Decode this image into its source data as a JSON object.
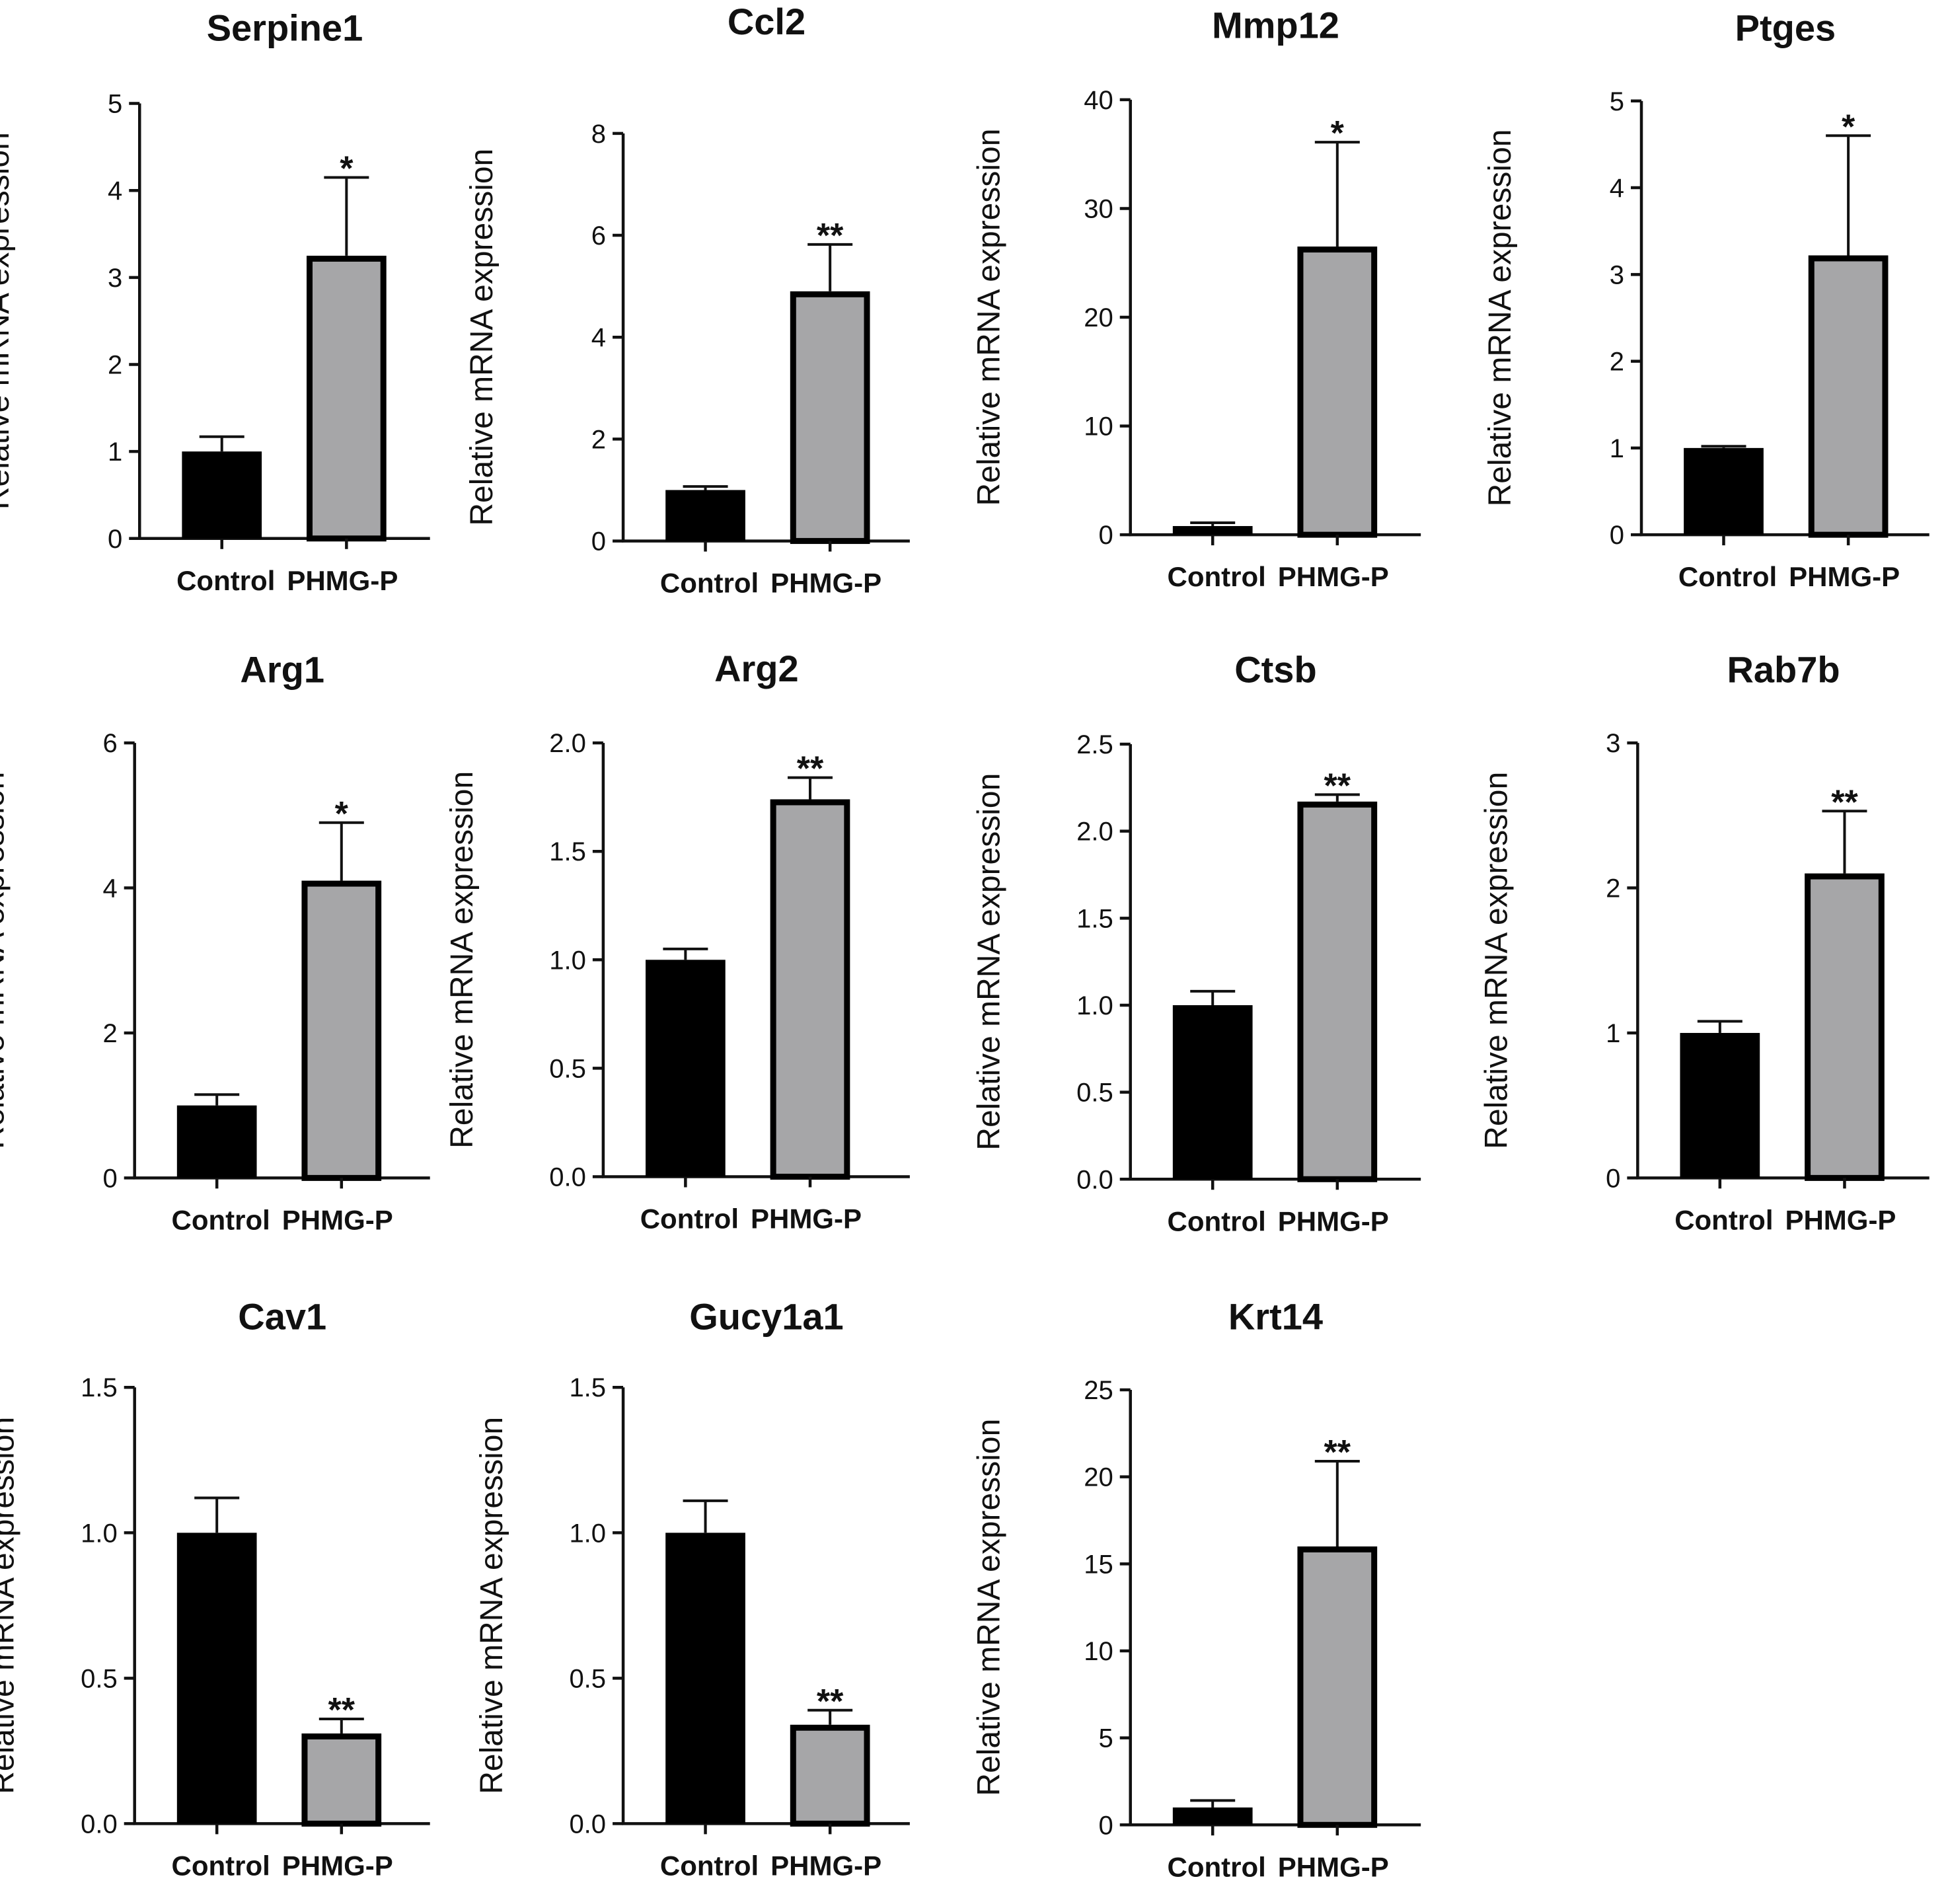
{
  "figure": {
    "y_axis_label": "Relative mRNA expression",
    "categories": [
      "Control",
      "PHMG-P"
    ],
    "colors": {
      "Control": "#000000",
      "PHMG-P": "#a6a6a8"
    }
  },
  "chart_data": [
    {
      "type": "bar",
      "title": "Serpine1",
      "ylabel": "Relative mRNA expression",
      "categories": [
        "Control",
        "PHMG-P"
      ],
      "values": [
        1.0,
        3.25
      ],
      "errors": [
        0.17,
        0.9
      ],
      "ylim": [
        0,
        5
      ],
      "yticks": [
        "0",
        "1",
        "2",
        "3",
        "4",
        "5"
      ],
      "significance": "*"
    },
    {
      "type": "bar",
      "title": "Ccl2",
      "ylabel": "Relative mRNA expression",
      "categories": [
        "Control",
        "PHMG-P"
      ],
      "values": [
        1.0,
        4.9
      ],
      "errors": [
        0.07,
        0.92
      ],
      "ylim": [
        0,
        8
      ],
      "yticks": [
        "0",
        "2",
        "4",
        "6",
        "8"
      ],
      "significance": "**"
    },
    {
      "type": "bar",
      "title": "Mmp12",
      "ylabel": "Relative mRNA expression",
      "categories": [
        "Control",
        "PHMG-P"
      ],
      "values": [
        0.8,
        26.5
      ],
      "errors": [
        0.3,
        9.6
      ],
      "ylim": [
        0,
        40
      ],
      "yticks": [
        "0",
        "10",
        "20",
        "30",
        "40"
      ],
      "significance": "*"
    },
    {
      "type": "bar",
      "title": "Ptges",
      "ylabel": "Relative mRNA expression",
      "categories": [
        "Control",
        "PHMG-P"
      ],
      "values": [
        1.0,
        3.22
      ],
      "errors": [
        0.02,
        1.38
      ],
      "ylim": [
        0,
        5
      ],
      "yticks": [
        "0",
        "1",
        "2",
        "3",
        "4",
        "5"
      ],
      "significance": "*"
    },
    {
      "type": "bar",
      "title": "Arg1",
      "ylabel": "Relative mRNA expression",
      "categories": [
        "Control",
        "PHMG-P"
      ],
      "values": [
        1.0,
        4.1
      ],
      "errors": [
        0.15,
        0.8
      ],
      "ylim": [
        0,
        6
      ],
      "yticks": [
        "0",
        "2",
        "4",
        "6"
      ],
      "significance": "*"
    },
    {
      "type": "bar",
      "title": "Arg2",
      "ylabel": "Relative mRNA expression",
      "categories": [
        "Control",
        "PHMG-P"
      ],
      "values": [
        1.0,
        1.74
      ],
      "errors": [
        0.05,
        0.1
      ],
      "ylim": [
        0,
        2
      ],
      "yticks": [
        "0.0",
        "0.5",
        "1.0",
        "1.5",
        "2.0"
      ],
      "significance": "**"
    },
    {
      "type": "bar",
      "title": "Ctsb",
      "ylabel": "Relative mRNA expression",
      "categories": [
        "Control",
        "PHMG-P"
      ],
      "values": [
        1.0,
        2.17
      ],
      "errors": [
        0.08,
        0.04
      ],
      "ylim": [
        0,
        2.5
      ],
      "yticks": [
        "0.0",
        "0.5",
        "1.0",
        "1.5",
        "2.0",
        "2.5"
      ],
      "significance": "**"
    },
    {
      "type": "bar",
      "title": "Rab7b",
      "ylabel": "Relative mRNA expression",
      "categories": [
        "Control",
        "PHMG-P"
      ],
      "values": [
        1.0,
        2.1
      ],
      "errors": [
        0.08,
        0.43
      ],
      "ylim": [
        0,
        3
      ],
      "yticks": [
        "0",
        "1",
        "2",
        "3"
      ],
      "significance": "**"
    },
    {
      "type": "bar",
      "title": "Cav1",
      "ylabel": "Relative mRNA expression",
      "categories": [
        "Control",
        "PHMG-P"
      ],
      "values": [
        1.0,
        0.31
      ],
      "errors": [
        0.12,
        0.05
      ],
      "ylim": [
        0,
        1.5
      ],
      "yticks": [
        "0.0",
        "0.5",
        "1.0",
        "1.5"
      ],
      "significance": "**"
    },
    {
      "type": "bar",
      "title": "Gucy1a1",
      "ylabel": "Relative mRNA expression",
      "categories": [
        "Control",
        "PHMG-P"
      ],
      "values": [
        1.0,
        0.34
      ],
      "errors": [
        0.11,
        0.05
      ],
      "ylim": [
        0,
        1.5
      ],
      "yticks": [
        "0.0",
        "0.5",
        "1.0",
        "1.5"
      ],
      "significance": "**"
    },
    {
      "type": "bar",
      "title": "Krt14",
      "ylabel": "Relative mRNA expression",
      "categories": [
        "Control",
        "PHMG-P"
      ],
      "values": [
        1.0,
        16.0
      ],
      "errors": [
        0.4,
        4.9
      ],
      "ylim": [
        0,
        25
      ],
      "yticks": [
        "0",
        "5",
        "10",
        "15",
        "20",
        "25"
      ],
      "significance": "**"
    }
  ]
}
